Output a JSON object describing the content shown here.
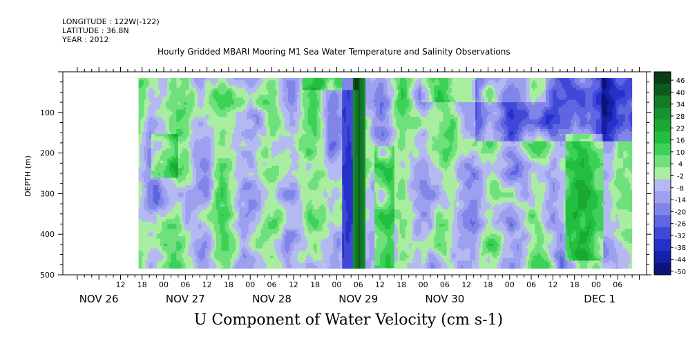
{
  "header": {
    "longitude": "LONGITUDE : 122W(-122)",
    "latitude": "LATITUDE : 36.8N",
    "year": "YEAR : 2012",
    "title": "Hourly Gridded MBARI Mooring M1 Sea Water Temperature and Salinity Observations"
  },
  "chart_data": {
    "type": "heatmap",
    "title": "U Component of Water Velocity (cm s-1)",
    "ylabel": "DEPTH (m)",
    "ylim": [
      500,
      0
    ],
    "y_ticks": [
      100,
      200,
      300,
      400,
      500
    ],
    "x_hour_ticks": [
      "12",
      "18",
      "00",
      "06",
      "12",
      "18",
      "00",
      "06",
      "12",
      "18",
      "00",
      "06",
      "12",
      "18",
      "00",
      "06",
      "12",
      "18",
      "00",
      "06",
      "12",
      "18",
      "00",
      "06"
    ],
    "x_day_labels": [
      "NOV 26",
      "NOV 27",
      "NOV 28",
      "NOV 29",
      "NOV 30",
      "DEC  1"
    ],
    "colorbar": {
      "labels": [
        "46",
        "40",
        "34",
        "28",
        "22",
        "16",
        "10",
        "4",
        "-2",
        "-8",
        "-14",
        "-20",
        "-26",
        "-32",
        "-38",
        "-44",
        "-50"
      ],
      "colors": [
        "#0a3d12",
        "#0e5a1c",
        "#137a26",
        "#17922f",
        "#1aa935",
        "#22bf40",
        "#3dd158",
        "#6fe07c",
        "#a9eda0",
        "#b5b9f2",
        "#9ca0ee",
        "#8085e8",
        "#6065e2",
        "#4048d8",
        "#2530c8",
        "#1420a8",
        "#0c137a"
      ]
    },
    "data_extent_hours": [
      17,
      154
    ],
    "data_extent_depth": [
      15,
      485
    ]
  }
}
